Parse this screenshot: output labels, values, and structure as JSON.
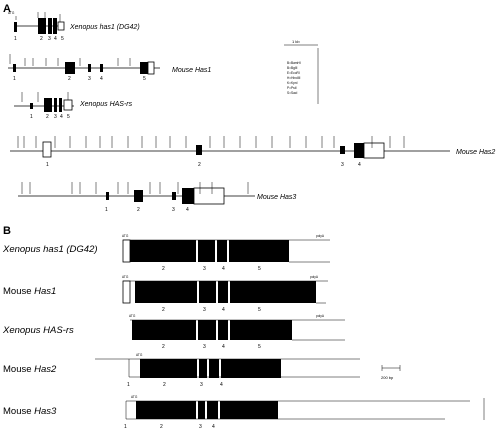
{
  "panel_a": {
    "label": "A",
    "genes": [
      {
        "name": "Xenopus has1 (DG42)",
        "exon_labels": [
          "1",
          "2",
          "3",
          "4",
          "5"
        ],
        "start_label": "ATG"
      },
      {
        "name": "Mouse Has1",
        "exon_labels": [
          "1",
          "2",
          "3",
          "4",
          "5"
        ]
      },
      {
        "name": "Xenopus HAS-rs",
        "exon_labels": [
          "1",
          "2",
          "3",
          "4",
          "5"
        ]
      },
      {
        "name": "Mouse Has2",
        "exon_labels": [
          "1",
          "2",
          "3",
          "4"
        ]
      },
      {
        "name": "Mouse Has3",
        "exon_labels": [
          "1",
          "2",
          "3",
          "4"
        ]
      }
    ],
    "legend": {
      "title": "1 kb",
      "items": [
        "B=BamHI",
        "B=BglII",
        "E=EcoRI",
        "H=HindIII",
        "K=KpnI",
        "P=PstI",
        "S=SacI"
      ]
    }
  },
  "panel_b": {
    "label": "B",
    "genes": [
      {
        "name_italic": "Xenopus has1 (DG42)",
        "name_plain": "",
        "start": "ATG",
        "stop": "polyA",
        "exon_labels": [
          "2",
          "3",
          "4",
          "5"
        ]
      },
      {
        "name_plain": "Mouse ",
        "name_italic": "Has1",
        "start": "ATG",
        "stop": "polyA",
        "exon_labels": [
          "2",
          "3",
          "4",
          "5"
        ]
      },
      {
        "name_italic": "Xenopus HAS-rs",
        "name_plain": "",
        "start": "ATG",
        "stop": "polyA",
        "exon_labels": [
          "2",
          "3",
          "4",
          "5"
        ]
      },
      {
        "name_plain": "Mouse ",
        "name_italic": "Has2",
        "start": "ATG",
        "stop": "",
        "exon_labels": [
          "1",
          "2",
          "3",
          "4"
        ]
      },
      {
        "name_plain": "Mouse ",
        "name_italic": "Has3",
        "start": "ATG",
        "stop": "",
        "exon_labels": [
          "1",
          "2",
          "3",
          "4"
        ]
      }
    ],
    "scale_label": "200 bp"
  }
}
